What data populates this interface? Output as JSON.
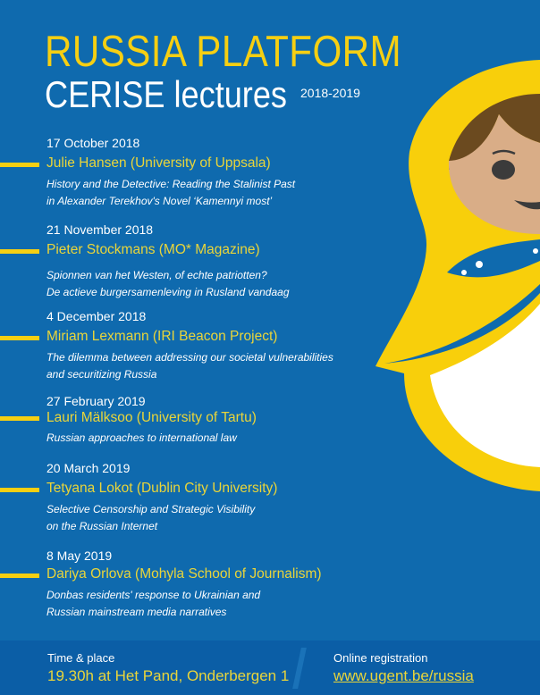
{
  "header": {
    "title": "RUSSIA PLATFORM",
    "subtitle": "CERISE lectures",
    "years": "2018-2019"
  },
  "events": [
    {
      "date": "17 October 2018",
      "speaker": "Julie Hansen (University of Uppsala)",
      "desc": [
        "History and the Detective: Reading the Stalinist Past",
        "in Alexander Terekhov's Novel ‘Kamennyi most’"
      ]
    },
    {
      "date": "21 November 2018",
      "speaker": "Pieter Stockmans (MO* Magazine)",
      "desc": [
        "Spionnen van het Westen, of echte patriotten?",
        "De actieve burgersamenleving in Rusland vandaag"
      ]
    },
    {
      "date": "4 December 2018",
      "speaker": "Miriam Lexmann (IRI Beacon Project)",
      "desc": [
        "The dilemma between addressing our societal vulnerabilities",
        "and securitizing Russia"
      ]
    },
    {
      "date": "27 February 2019",
      "speaker": "Lauri Mälksoo (University of Tartu)",
      "desc": [
        "Russian approaches to international law"
      ]
    },
    {
      "date": "20 March 2019",
      "speaker": "Tetyana Lokot (Dublin City University)",
      "desc": [
        "Selective Censorship and Strategic Visibility",
        "on the Russian Internet"
      ]
    },
    {
      "date": "8 May 2019",
      "speaker": "Dariya Orlova (Mohyla School of Journalism)",
      "desc": [
        "Donbas residents' response to Ukrainian and",
        "Russian mainstream media narratives"
      ]
    }
  ],
  "footer": {
    "time_label": "Time & place",
    "time_value": "19.30h at Het Pand, Onderbergen 1",
    "reg_label": "Online registration",
    "reg_link": "www.ugent.be/russia"
  },
  "colors": {
    "background": "#0f6aae",
    "accent": "#f6cf12",
    "footer": "#0b5ea6"
  },
  "illustration": "matryoshka-doll"
}
